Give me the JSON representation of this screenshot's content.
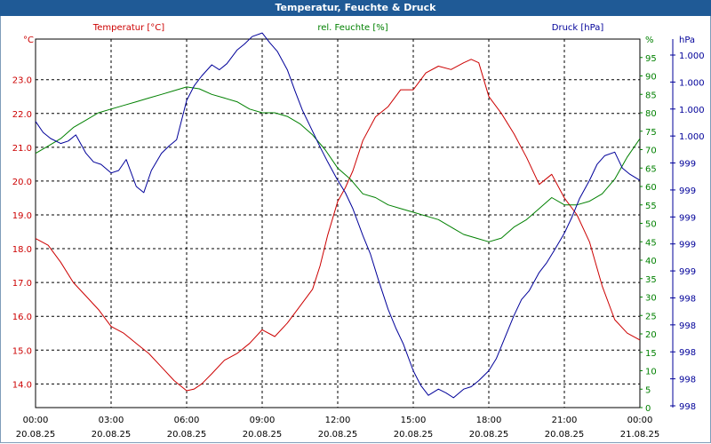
{
  "window": {
    "title": "Temperatur, Feuchte & Druck"
  },
  "colors": {
    "temperature": "#cc0000",
    "humidity": "#008000",
    "pressure": "#000099",
    "grid": "#000000",
    "titlebar": "#1f5a96"
  },
  "chart_data": {
    "type": "line",
    "title": "Temperatur, Feuchte & Druck",
    "x_ticks": [
      {
        "hours": 0,
        "time": "00:00",
        "date": "20.08.25"
      },
      {
        "hours": 3,
        "time": "03:00",
        "date": "20.08.25"
      },
      {
        "hours": 6,
        "time": "06:00",
        "date": "20.08.25"
      },
      {
        "hours": 9,
        "time": "09:00",
        "date": "20.08.25"
      },
      {
        "hours": 12,
        "time": "12:00",
        "date": "20.08.25"
      },
      {
        "hours": 15,
        "time": "15:00",
        "date": "20.08.25"
      },
      {
        "hours": 18,
        "time": "18:00",
        "date": "20.08.25"
      },
      {
        "hours": 21,
        "time": "21:00",
        "date": "20.08.25"
      },
      {
        "hours": 24,
        "time": "00:00",
        "date": "21.08.25"
      }
    ],
    "xlim": [
      0,
      24
    ],
    "axes": {
      "temperature": {
        "label": "Temperatur [°C]",
        "unit": "°C",
        "ylim": [
          13.3,
          24.2
        ],
        "ticks": [
          "14.0",
          "15.0",
          "16.0",
          "17.0",
          "18.0",
          "19.0",
          "20.0",
          "21.0",
          "22.0",
          "23.0"
        ]
      },
      "humidity": {
        "label": "rel. Feuchte [%]",
        "unit": "%",
        "ylim": [
          0,
          100
        ],
        "ticks": [
          "0",
          "5",
          "10",
          "15",
          "20",
          "25",
          "30",
          "35",
          "40",
          "45",
          "50",
          "55",
          "60",
          "65",
          "70",
          "75",
          "80",
          "85",
          "90",
          "95"
        ]
      },
      "pressure": {
        "label": "Druck [hPa]",
        "unit": "hPa",
        "ylim": [
          997.8,
          1000.8
        ],
        "ticks": [
          "998",
          "998",
          "998",
          "998",
          "998",
          "999",
          "999",
          "999",
          "999",
          "999",
          "1.000",
          "1.000",
          "1.000",
          "1.000"
        ]
      }
    },
    "series": [
      {
        "name": "Temperatur",
        "axis": "temperature",
        "x": [
          0,
          0.5,
          1,
          1.5,
          2,
          2.5,
          3,
          3.5,
          4,
          4.5,
          5,
          5.5,
          6,
          6.3,
          6.6,
          7,
          7.5,
          8,
          8.5,
          9,
          9.5,
          10,
          10.5,
          11,
          11.3,
          11.6,
          12,
          12.3,
          12.6,
          13,
          13.5,
          14,
          14.5,
          15,
          15.5,
          16,
          16.5,
          17,
          17.3,
          17.6,
          18,
          18.5,
          19,
          19.5,
          20,
          20.5,
          21,
          21.5,
          22,
          22.5,
          23,
          23.5,
          24
        ],
        "values": [
          18.3,
          18.1,
          17.6,
          17.0,
          16.6,
          16.2,
          15.7,
          15.5,
          15.2,
          14.9,
          14.5,
          14.1,
          13.8,
          13.85,
          14.0,
          14.3,
          14.7,
          14.9,
          15.2,
          15.6,
          15.4,
          15.8,
          16.3,
          16.8,
          17.5,
          18.4,
          19.4,
          19.8,
          20.3,
          21.2,
          21.9,
          22.2,
          22.7,
          22.7,
          23.2,
          23.4,
          23.3,
          23.5,
          23.6,
          23.5,
          22.5,
          22.0,
          21.4,
          20.7,
          19.9,
          20.2,
          19.5,
          19.0,
          18.2,
          16.9,
          15.9,
          15.5,
          15.3
        ]
      },
      {
        "name": "rel. Feuchte",
        "axis": "humidity",
        "x": [
          0,
          0.5,
          1,
          1.5,
          2,
          2.5,
          3,
          3.5,
          4,
          4.5,
          5,
          5.5,
          6,
          6.5,
          7,
          7.5,
          8,
          8.5,
          9,
          9.5,
          10,
          10.5,
          11,
          11.5,
          12,
          12.5,
          13,
          13.5,
          14,
          14.5,
          15,
          15.5,
          16,
          16.5,
          17,
          17.5,
          18,
          18.5,
          19,
          19.5,
          20,
          20.5,
          21,
          21.5,
          22,
          22.5,
          23,
          23.5,
          24
        ],
        "values": [
          69,
          71,
          73,
          76,
          78,
          80,
          81,
          82,
          83,
          84,
          85,
          86,
          87,
          86.5,
          85,
          84,
          83,
          81,
          80,
          80,
          79,
          77,
          74,
          70,
          65,
          62,
          58,
          57,
          55,
          54,
          53,
          52,
          51,
          49,
          47,
          46,
          45,
          46,
          49,
          51,
          54,
          57,
          55,
          55,
          56,
          58,
          62,
          68,
          73
        ]
      },
      {
        "name": "Druck",
        "axis": "pressure",
        "x": [
          0,
          0.3,
          0.6,
          1,
          1.3,
          1.6,
          2,
          2.3,
          2.6,
          3,
          3.3,
          3.6,
          4,
          4.3,
          4.6,
          5,
          5.3,
          5.6,
          6,
          6.3,
          6.6,
          7,
          7.3,
          7.6,
          8,
          8.3,
          8.6,
          9,
          9.3,
          9.6,
          10,
          10.3,
          10.6,
          11,
          11.3,
          11.6,
          12,
          12.3,
          12.6,
          13,
          13.3,
          13.6,
          14,
          14.3,
          14.6,
          15,
          15.3,
          15.6,
          16,
          16.3,
          16.6,
          17,
          17.3,
          17.6,
          18,
          18.3,
          18.6,
          19,
          19.3,
          19.6,
          20,
          20.3,
          20.6,
          21,
          21.3,
          21.6,
          22,
          22.3,
          22.6,
          23,
          23.3,
          23.6,
          24
        ],
        "values": [
          1000.13,
          1000.04,
          999.99,
          999.95,
          999.97,
          1000.02,
          999.87,
          999.8,
          999.78,
          999.71,
          999.73,
          999.82,
          999.6,
          999.55,
          999.73,
          999.87,
          999.93,
          999.98,
          1000.3,
          1000.42,
          1000.5,
          1000.59,
          1000.55,
          1000.6,
          1000.71,
          1000.76,
          1000.82,
          1000.85,
          1000.77,
          1000.7,
          1000.55,
          1000.38,
          1000.22,
          1000.05,
          999.92,
          999.8,
          999.65,
          999.55,
          999.42,
          999.2,
          999.05,
          998.85,
          998.6,
          998.45,
          998.32,
          998.1,
          997.98,
          997.9,
          997.95,
          997.92,
          997.88,
          997.95,
          997.97,
          998.02,
          998.1,
          998.2,
          998.35,
          998.55,
          998.68,
          998.75,
          998.9,
          998.98,
          999.08,
          999.22,
          999.35,
          999.5,
          999.65,
          999.78,
          999.85,
          999.88,
          999.75,
          999.7,
          999.65
        ]
      }
    ],
    "grid": true,
    "legend": "axis labels above plot, colour coded per axis"
  }
}
